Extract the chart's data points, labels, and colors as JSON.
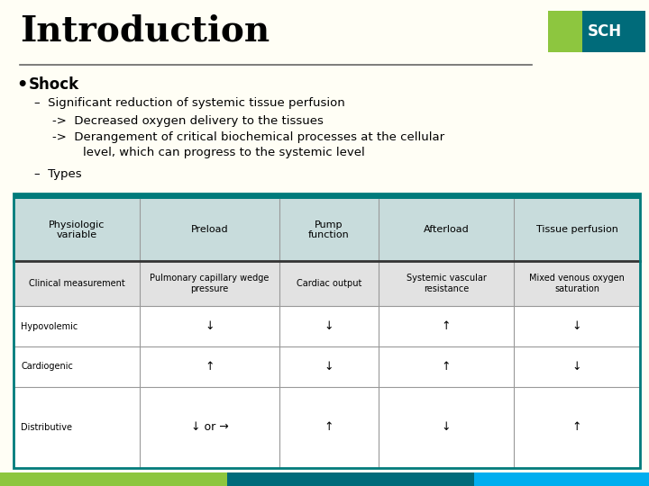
{
  "title": "Introduction",
  "bg_color": "#FFFEF5",
  "title_color": "#000000",
  "title_fontsize": 28,
  "hr_color": "#666666",
  "logo_green": "#8DC63F",
  "logo_teal": "#006B7A",
  "logo_blue": "#00AEEF",
  "logo_text": "SCH",
  "bullet_text": "Shock",
  "sub1": "Significant reduction of systemic tissue perfusion",
  "sub2a": "->  Decreased oxygen delivery to the tissues",
  "sub2b": "->  Derangement of critical biochemical processes at the cellular",
  "sub2b2": "        level, which can progress to the systemic level",
  "sub3": "Types",
  "table_header_bg": "#C8DCDC",
  "table_header_top_border": "#007B7B",
  "table_row2_bg": "#E2E2E2",
  "table_border_color": "#007B7B",
  "table_inner_line": "#999999",
  "table_bold_line": "#333333",
  "table_col_headers": [
    "Physiologic\nvariable",
    "Preload",
    "Pump\nfunction",
    "Afterload",
    "Tissue perfusion"
  ],
  "table_row2": [
    "Clinical measurement",
    "Pulmonary capillary wedge\npressure",
    "Cardiac output",
    "Systemic vascular\nresistance",
    "Mixed venous oxygen\nsaturation"
  ],
  "table_rows": [
    [
      "Hypovolemic",
      "↓",
      "↓",
      "↑",
      "↓"
    ],
    [
      "Cardiogenic",
      "↑",
      "↓",
      "↑",
      "↓"
    ],
    [
      "Distributive",
      "↓ or →",
      "↑",
      "↓",
      "↑"
    ]
  ],
  "footer_green": "#8DC63F",
  "footer_teal": "#006B7A",
  "footer_blue": "#00AEEF",
  "footer_ratios": [
    0.35,
    0.38,
    0.27
  ]
}
